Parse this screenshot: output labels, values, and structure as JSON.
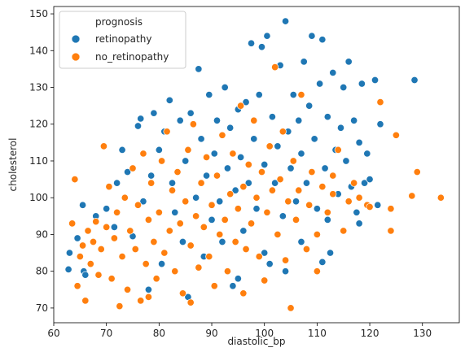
{
  "chart_data": {
    "type": "scatter",
    "title": "",
    "xlabel": "diastolic_bp",
    "ylabel": "cholesterol",
    "xlim": [
      60,
      137
    ],
    "ylim": [
      66,
      152
    ],
    "xticks": [
      60,
      70,
      80,
      90,
      100,
      110,
      120,
      130
    ],
    "yticks": [
      70,
      80,
      90,
      100,
      110,
      120,
      130,
      140,
      150
    ],
    "grid": false,
    "legend": {
      "title": "prognosis",
      "placement": "top-left",
      "entries": [
        "retinopathy",
        "no_retinopathy"
      ]
    },
    "series": [
      {
        "name": "retinopathy",
        "color": "#1f77b4",
        "points": [
          [
            62.8,
            80.5
          ],
          [
            63.0,
            85.0
          ],
          [
            64.5,
            89.0
          ],
          [
            65.5,
            98.0
          ],
          [
            65.7,
            80.0
          ],
          [
            66.0,
            79.0
          ],
          [
            68.0,
            95.0
          ],
          [
            70.0,
            97.0
          ],
          [
            71.5,
            92.0
          ],
          [
            72.0,
            104.0
          ],
          [
            73.0,
            113.0
          ],
          [
            74.0,
            107.0
          ],
          [
            75.0,
            89.5
          ],
          [
            76.0,
            119.5
          ],
          [
            76.5,
            121.5
          ],
          [
            77.0,
            99.0
          ],
          [
            78.0,
            75.0
          ],
          [
            78.5,
            106.0
          ],
          [
            79.0,
            123.0
          ],
          [
            80.0,
            113.0
          ],
          [
            80.5,
            82.0
          ],
          [
            81.0,
            118.0
          ],
          [
            82.0,
            126.5
          ],
          [
            82.5,
            104.0
          ],
          [
            83.0,
            96.0
          ],
          [
            84.0,
            121.0
          ],
          [
            84.5,
            88.0
          ],
          [
            85.0,
            110.0
          ],
          [
            85.5,
            73.0
          ],
          [
            86.0,
            123.0
          ],
          [
            87.0,
            100.0
          ],
          [
            87.5,
            135.0
          ],
          [
            88.0,
            116.0
          ],
          [
            88.5,
            84.0
          ],
          [
            89.0,
            106.0
          ],
          [
            89.5,
            128.0
          ],
          [
            90.0,
            94.0
          ],
          [
            90.5,
            112.0
          ],
          [
            91.0,
            121.0
          ],
          [
            91.5,
            99.0
          ],
          [
            92.0,
            88.0
          ],
          [
            92.5,
            130.0
          ],
          [
            93.0,
            108.0
          ],
          [
            93.5,
            119.0
          ],
          [
            94.0,
            76.0
          ],
          [
            94.5,
            102.0
          ],
          [
            95.0,
            124.0
          ],
          [
            95.5,
            111.0
          ],
          [
            96.0,
            91.0
          ],
          [
            96.5,
            126.0
          ],
          [
            97.0,
            104.0
          ],
          [
            97.5,
            142.0
          ],
          [
            98.0,
            116.0
          ],
          [
            98.5,
            97.0
          ],
          [
            99.0,
            128.0
          ],
          [
            99.5,
            141.0
          ],
          [
            100.0,
            109.0
          ],
          [
            100.5,
            144.0
          ],
          [
            101.0,
            82.0
          ],
          [
            101.5,
            122.0
          ],
          [
            102.0,
            104.0
          ],
          [
            102.5,
            114.0
          ],
          [
            103.0,
            136.0
          ],
          [
            103.5,
            95.0
          ],
          [
            104.0,
            148.0
          ],
          [
            104.5,
            118.0
          ],
          [
            105.0,
            108.0
          ],
          [
            105.5,
            128.0
          ],
          [
            106.0,
            99.0
          ],
          [
            106.5,
            121.0
          ],
          [
            107.0,
            112.0
          ],
          [
            107.5,
            137.0
          ],
          [
            108.0,
            104.0
          ],
          [
            108.5,
            125.0
          ],
          [
            109.0,
            144.0
          ],
          [
            109.5,
            116.0
          ],
          [
            110.0,
            97.0
          ],
          [
            110.5,
            131.0
          ],
          [
            111.0,
            143.0
          ],
          [
            111.5,
            108.0
          ],
          [
            112.0,
            122.0
          ],
          [
            112.5,
            85.0
          ],
          [
            113.0,
            134.0
          ],
          [
            113.5,
            113.0
          ],
          [
            114.0,
            101.0
          ],
          [
            114.5,
            119.0
          ],
          [
            115.0,
            130.0
          ],
          [
            115.5,
            110.0
          ],
          [
            116.0,
            137.0
          ],
          [
            116.5,
            103.0
          ],
          [
            117.0,
            121.0
          ],
          [
            117.5,
            96.0
          ],
          [
            118.0,
            115.0
          ],
          [
            118.5,
            131.0
          ],
          [
            119.0,
            104.0
          ],
          [
            119.5,
            112.0
          ],
          [
            120.0,
            105.0
          ],
          [
            121.0,
            132.0
          ],
          [
            121.5,
            98.0
          ],
          [
            122.0,
            120.0
          ],
          [
            128.5,
            132.0
          ],
          [
            111.0,
            82.5
          ],
          [
            95.0,
            78.0
          ],
          [
            104.0,
            80.0
          ],
          [
            107.0,
            88.0
          ],
          [
            100.0,
            85.0
          ],
          [
            112.0,
            94.0
          ],
          [
            118.0,
            93.0
          ]
        ]
      },
      {
        "name": "no_retinopathy",
        "color": "#ff7f0e",
        "points": [
          [
            63.5,
            93.0
          ],
          [
            64.0,
            105.0
          ],
          [
            64.5,
            76.0
          ],
          [
            65.0,
            84.0
          ],
          [
            65.5,
            87.0
          ],
          [
            66.0,
            72.0
          ],
          [
            66.5,
            91.0
          ],
          [
            67.0,
            82.0
          ],
          [
            67.5,
            88.0
          ],
          [
            68.0,
            93.5
          ],
          [
            68.5,
            79.0
          ],
          [
            69.0,
            86.0
          ],
          [
            69.5,
            114.0
          ],
          [
            70.0,
            92.0
          ],
          [
            70.5,
            103.0
          ],
          [
            71.0,
            78.0
          ],
          [
            71.5,
            89.0
          ],
          [
            72.0,
            96.0
          ],
          [
            72.5,
            70.5
          ],
          [
            73.0,
            84.0
          ],
          [
            73.5,
            100.0
          ],
          [
            74.0,
            75.0
          ],
          [
            74.5,
            91.0
          ],
          [
            75.0,
            108.0
          ],
          [
            75.5,
            86.0
          ],
          [
            76.0,
            98.0
          ],
          [
            76.5,
            72.0
          ],
          [
            77.0,
            112.0
          ],
          [
            77.5,
            82.0
          ],
          [
            78.0,
            94.0
          ],
          [
            78.5,
            104.0
          ],
          [
            79.0,
            88.0
          ],
          [
            79.5,
            78.0
          ],
          [
            80.0,
            96.0
          ],
          [
            80.5,
            110.0
          ],
          [
            81.0,
            85.0
          ],
          [
            81.5,
            118.0
          ],
          [
            82.0,
            91.0
          ],
          [
            82.5,
            102.0
          ],
          [
            83.0,
            80.0
          ],
          [
            83.5,
            107.0
          ],
          [
            84.0,
            93.0
          ],
          [
            84.5,
            74.0
          ],
          [
            85.0,
            99.0
          ],
          [
            85.5,
            113.0
          ],
          [
            86.0,
            87.0
          ],
          [
            86.5,
            120.0
          ],
          [
            87.0,
            95.0
          ],
          [
            87.5,
            81.0
          ],
          [
            88.0,
            104.0
          ],
          [
            88.5,
            92.0
          ],
          [
            89.0,
            111.0
          ],
          [
            89.5,
            84.0
          ],
          [
            90.0,
            98.0
          ],
          [
            90.5,
            76.0
          ],
          [
            91.0,
            106.0
          ],
          [
            91.5,
            90.0
          ],
          [
            92.0,
            117.0
          ],
          [
            92.5,
            94.0
          ],
          [
            93.0,
            80.0
          ],
          [
            93.5,
            101.0
          ],
          [
            94.0,
            112.0
          ],
          [
            94.5,
            88.0
          ],
          [
            95.0,
            97.0
          ],
          [
            95.5,
            125.0
          ],
          [
            96.0,
            103.0
          ],
          [
            96.5,
            86.0
          ],
          [
            97.0,
            109.0
          ],
          [
            97.5,
            93.0
          ],
          [
            98.0,
            121.0
          ],
          [
            98.5,
            100.0
          ],
          [
            99.0,
            84.0
          ],
          [
            99.5,
            107.0
          ],
          [
            100.0,
            77.5
          ],
          [
            100.5,
            96.0
          ],
          [
            101.0,
            114.0
          ],
          [
            101.5,
            102.0
          ],
          [
            102.0,
            135.5
          ],
          [
            102.5,
            90.0
          ],
          [
            103.0,
            105.0
          ],
          [
            103.5,
            118.0
          ],
          [
            104.0,
            83.0
          ],
          [
            104.5,
            99.0
          ],
          [
            105.0,
            70.0
          ],
          [
            105.5,
            110.0
          ],
          [
            106.0,
            94.0
          ],
          [
            106.5,
            102.0
          ],
          [
            107.0,
            128.0
          ],
          [
            108.0,
            86.0
          ],
          [
            108.5,
            98.0
          ],
          [
            109.0,
            107.0
          ],
          [
            110.0,
            90.0
          ],
          [
            111.0,
            103.0
          ],
          [
            112.0,
            96.0
          ],
          [
            113.0,
            101.0
          ],
          [
            114.0,
            113.0
          ],
          [
            115.0,
            91.0
          ],
          [
            116.0,
            99.0
          ],
          [
            117.0,
            104.0
          ],
          [
            118.0,
            100.0
          ],
          [
            119.5,
            98.0
          ],
          [
            122.0,
            126.0
          ],
          [
            124.0,
            97.0
          ],
          [
            124.0,
            91.0
          ],
          [
            125.0,
            117.0
          ],
          [
            128.0,
            100.5
          ],
          [
            129.0,
            107.0
          ],
          [
            133.5,
            100.0
          ],
          [
            110.0,
            80.0
          ],
          [
            120.0,
            97.5
          ],
          [
            113.0,
            106.0
          ],
          [
            96.0,
            74.0
          ],
          [
            86.0,
            71.5
          ],
          [
            78.0,
            73.0
          ]
        ]
      }
    ]
  }
}
